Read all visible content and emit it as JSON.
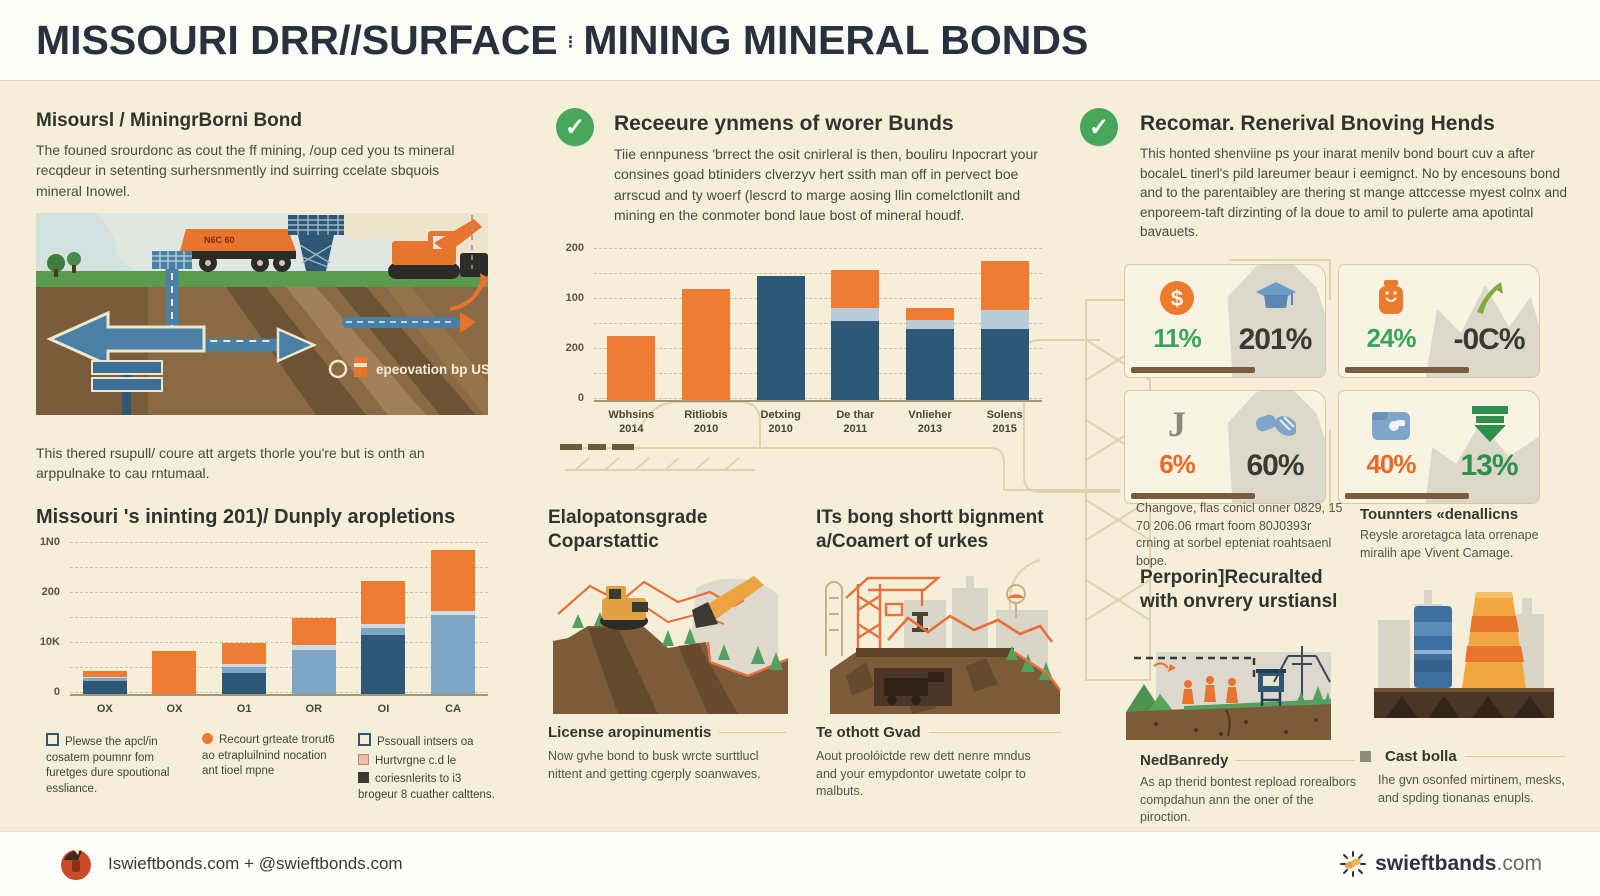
{
  "header": {
    "title_part1": "MISSOURI DRR//SURFACE",
    "title_divider": "⁝",
    "title_part2": "MINING MINERAL BONDS"
  },
  "left_column": {
    "intro_heading": "Misoursl / MiningrBorni Bond",
    "intro_body": "The founed srourdonc as cout the ff mining, /oup ced you ts mineral recqdeur in setenting surhersnmently ind suirring ccelate sbquois mineral Inowel.",
    "scene_truck_label": "N6C 60",
    "scene_label": "epeovation bp US",
    "note": "This thered rsupull/ coure att argets thorle you're but is onth an arppulnake to cau rntumaal.",
    "chart_heading": "Missouri 's ininting 201)/ Dunply aropletions",
    "legend": [
      {
        "text": "Plewse the apcl/in cosatem poumnr fom furetges dure spoutional essliance."
      },
      {
        "text": "Recourt grteate trorut6 ao etrapluilnind nocation ant tioel mpne"
      },
      {
        "lines": [
          {
            "text": "Pssouall intsers oa"
          },
          {
            "text": "Hurtvrgne c.d le"
          },
          {
            "text": "coriesnlerits to i3 brogeur 8 cuather calttens."
          }
        ]
      }
    ]
  },
  "middle_column": {
    "bonds_heading": "Receeure ynmens of worer Bunds",
    "bonds_body": "Tiie ennpuness 'brrect the osit cnirleral is then, bouliru Inpocrart your consines goad btiniders clverzyv hert ssith man off in pervect boe arrscud and ty woerf (lescrd to marge aosing llin comelctlonilt and mining en the conmoter bond laue bost of mineral houdf.",
    "sub_left_heading": "Elalopatonsgrade Coparstattic",
    "sub_left_caption": "License aropinumentis",
    "sub_left_body": "Now gvhe bond to busk wrcte surttlucl nittent and getting cgerply soanwaves.",
    "sub_right_heading": "ITs bong shortt bignment a/Coamert of urkes",
    "sub_right_caption": "Te othott Gvad",
    "sub_right_body": "Aout proolóictde rew dett nenre mndus and your emypdontor uwetate colpr to malbuts."
  },
  "right_column": {
    "trends_heading": "Recomar. Renerival Bnoving Hends",
    "trends_body": "This honted shenviine ps your inarat menilv bond bourt cuv a after bocaleL tinerl's pild lareumer beaur i eemignct. No by encesouns bond and to the parentaibley are thering st mange attccesse myest colnx and enporeem-taft dirzinting of la doue to amil to pulerte ama apotintal bavauets.",
    "stat_cards": [
      {
        "left_value": "11%",
        "left_color": "#3aa558",
        "right_value": "201%",
        "right_color": "#3a3a33",
        "left_icon": "dollar-badge",
        "right_icon": "mortarboard"
      },
      {
        "left_value": "24%",
        "left_color": "#3aa558",
        "right_value": "-0C%",
        "right_color": "#3a3a33",
        "left_icon": "jar",
        "right_icon": "arrow-up"
      },
      {
        "left_value": "6%",
        "left_color": "#e86a2a",
        "right_value": "60%",
        "right_color": "#3a3a33",
        "left_icon": "hook",
        "right_icon": "gloves"
      },
      {
        "left_value": "40%",
        "left_color": "#e86a2a",
        "right_value": "13%",
        "right_color": "#2f8f4f",
        "left_icon": "folder",
        "right_icon": "arrow-down"
      }
    ],
    "stats_note": "Changove, flas conicl onner 0829, 15 70 206.06 rmart foom 80J0393r crning at sorbel epteniat roahtsaenl bope.",
    "counters_heading": "Tounnters «denallicns",
    "counters_body": "Reysle aroretagca lata orrenape miralih ape Vivent Camage.",
    "performance_heading": "Perporin]Recuralted with onvrery urstiansl",
    "performance_caption": "NedBanredy",
    "performance_body": "As ap therid bontest repload rorealbors compdahun ann the oner of the piroction.",
    "cast_caption": "Cast bolla",
    "cast_body": "Ihe gvn osonfed mirtinem, mesks, and spding tionanas enupls."
  },
  "chart_data": [
    {
      "id": "mid-bond-chart",
      "type": "bar",
      "stacked": true,
      "categories": [
        "Wbhsins\n2014",
        "Ritliobis\n2010",
        "Detxing\n2010",
        "De thar\n2011",
        "Vnlieher\n2013",
        "Solens\n2015"
      ],
      "series": [
        {
          "name": "navy",
          "color": "#2f5876",
          "values": [
            0,
            0,
            165,
            105,
            95,
            95
          ]
        },
        {
          "name": "steel",
          "color": "#b9ccd9",
          "values": [
            0,
            0,
            0,
            18,
            12,
            25
          ]
        },
        {
          "name": "orange",
          "color": "#ef7c33",
          "values": [
            85,
            148,
            0,
            51,
            16,
            65
          ]
        }
      ],
      "yticks": [
        "200",
        "100",
        "200",
        "0"
      ],
      "ylim": [
        0,
        200
      ],
      "grid": "dashed",
      "legend_position": "none"
    },
    {
      "id": "left-supply-chart",
      "type": "bar",
      "stacked": true,
      "categories": [
        "OX",
        "OX",
        "O1",
        "OR",
        "OI",
        "CA"
      ],
      "series": [
        {
          "name": "navy",
          "color": "#2f5876",
          "values": [
            9,
            0,
            15,
            0,
            41,
            0
          ]
        },
        {
          "name": "steel",
          "color": "#7fa6c2",
          "values": [
            2,
            0,
            4,
            31,
            5,
            55
          ]
        },
        {
          "name": "pale",
          "color": "#cfdbe2",
          "values": [
            1,
            0,
            2,
            3,
            3,
            3
          ]
        },
        {
          "name": "orange",
          "color": "#ef7c33",
          "values": [
            4,
            30,
            15,
            19,
            30,
            43
          ]
        }
      ],
      "yticks": [
        "1N0",
        "200",
        "10K",
        "0"
      ],
      "ylim": [
        0,
        105
      ],
      "grid": "dashed",
      "legend_position": "below"
    }
  ],
  "footer": {
    "left_text": "Iswieftbonds.com + @swieftbonds.com",
    "brand": "swieftbands",
    "brand_suffix": ".com"
  },
  "colors": {
    "accent_orange": "#ee7a2f",
    "navy": "#2f5876",
    "steel": "#8fb3c9",
    "green": "#47a65a",
    "cream_bg": "#f5efd9",
    "brown": "#7a5c3e"
  }
}
